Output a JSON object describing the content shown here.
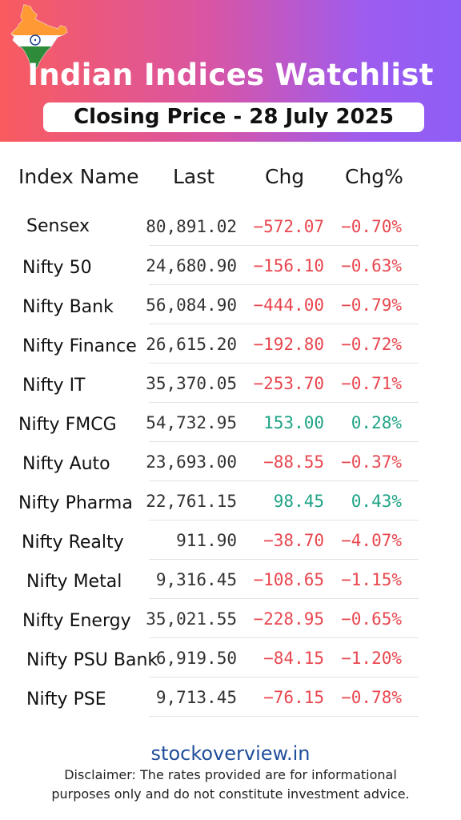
{
  "header": {
    "title": "Indian Indices Watchlist",
    "subtitle": "Closing Price - 28 July 2025",
    "colors": {
      "gradient_start": "#f95b5e",
      "gradient_end": "#8d5ef6"
    }
  },
  "table": {
    "columns": [
      "Index Name",
      "Last",
      "Chg",
      "Chg%"
    ],
    "rows": [
      {
        "name": "Sensex",
        "last": "80,891.02",
        "chg": "-572.07",
        "pct": "-0.70%",
        "dir": "neg"
      },
      {
        "name": "Nifty 50",
        "last": "24,680.90",
        "chg": "-156.10",
        "pct": "-0.63%",
        "dir": "neg"
      },
      {
        "name": "Nifty Bank",
        "last": "56,084.90",
        "chg": "-444.00",
        "pct": "-0.79%",
        "dir": "neg"
      },
      {
        "name": "Nifty Finance",
        "last": "26,615.20",
        "chg": "-192.80",
        "pct": "-0.72%",
        "dir": "neg"
      },
      {
        "name": "Nifty IT",
        "last": "35,370.05",
        "chg": "-253.70",
        "pct": "-0.71%",
        "dir": "neg"
      },
      {
        "name": "Nifty FMCG",
        "last": "54,732.95",
        "chg": "153.00",
        "pct": "0.28%",
        "dir": "pos"
      },
      {
        "name": "Nifty Auto",
        "last": "23,693.00",
        "chg": "-88.55",
        "pct": "-0.37%",
        "dir": "neg"
      },
      {
        "name": "Nifty Pharma",
        "last": "22,761.15",
        "chg": "98.45",
        "pct": "0.43%",
        "dir": "pos"
      },
      {
        "name": "Nifty Realty",
        "last": "911.90",
        "chg": "-38.70",
        "pct": "-4.07%",
        "dir": "neg"
      },
      {
        "name": "Nifty Metal",
        "last": "9,316.45",
        "chg": "-108.65",
        "pct": "-1.15%",
        "dir": "neg"
      },
      {
        "name": "Nifty Energy",
        "last": "35,021.55",
        "chg": "-228.95",
        "pct": "-0.65%",
        "dir": "neg"
      },
      {
        "name": "Nifty PSU Bank",
        "last": "6,919.50",
        "chg": "-84.15",
        "pct": "-1.20%",
        "dir": "neg"
      },
      {
        "name": "Nifty PSE",
        "last": "9,713.45",
        "chg": "-76.15",
        "pct": "-0.78%",
        "dir": "neg"
      }
    ],
    "colors": {
      "negative": "#e8474f",
      "positive": "#1fa386"
    }
  },
  "footer": {
    "site": "stockoverview.in",
    "disclaimer_line1": "Disclaimer: The rates provided are for informational",
    "disclaimer_line2": "purposes only and do not constitute investment advice."
  }
}
